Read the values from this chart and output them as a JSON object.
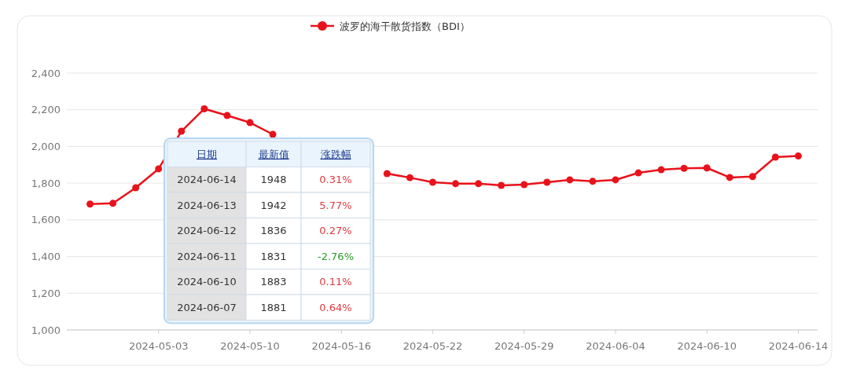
{
  "chart_data": {
    "type": "line",
    "categories": [
      null,
      null,
      null,
      "2024-05-03",
      null,
      null,
      null,
      "2024-05-10",
      null,
      null,
      null,
      "2024-05-16",
      null,
      null,
      null,
      "2024-05-22",
      null,
      null,
      null,
      "2024-05-29",
      null,
      null,
      null,
      "2024-06-04",
      null,
      null,
      null,
      "2024-06-10",
      null,
      null,
      null,
      "2024-06-14"
    ],
    "series": [
      {
        "name": "波罗的海干散货指数（BDI）",
        "color": "#e8121b",
        "values": [
          1686,
          1690,
          1775,
          1878,
          2083,
          2205,
          2169,
          2130,
          2066,
          null,
          null,
          null,
          null,
          1852,
          1830,
          1805,
          1797,
          1797,
          1788,
          1792,
          1805,
          1818,
          1810,
          1818,
          1856,
          1873,
          1881,
          1883,
          1831,
          1836,
          1942,
          1948
        ]
      }
    ],
    "ylim": [
      1000,
      2400
    ],
    "yticks": [
      {
        "value": 1000,
        "label": "1,000"
      },
      {
        "value": 1200,
        "label": "1,200"
      },
      {
        "value": 1400,
        "label": "1,400"
      },
      {
        "value": 1600,
        "label": "1,600"
      },
      {
        "value": 1800,
        "label": "1,800"
      },
      {
        "value": 2000,
        "label": "2,000"
      },
      {
        "value": 2200,
        "label": "2,200"
      },
      {
        "value": 2400,
        "label": "2,400"
      }
    ],
    "grid": "y",
    "legend": "top",
    "marker": "circle",
    "line_style": "solid",
    "annotations": [
      "日期",
      "最新值",
      "涨跌幅",
      "2024-06-14",
      "1948",
      "0.31%",
      "2024-06-13",
      "1942",
      "5.77%",
      "2024-06-12",
      "1836",
      "0.27%",
      "2024-06-11",
      "1831",
      "-2.76%",
      "2024-06-10",
      "1883",
      "0.11%",
      "2024-06-07",
      "1881",
      "0.64%"
    ]
  }
}
